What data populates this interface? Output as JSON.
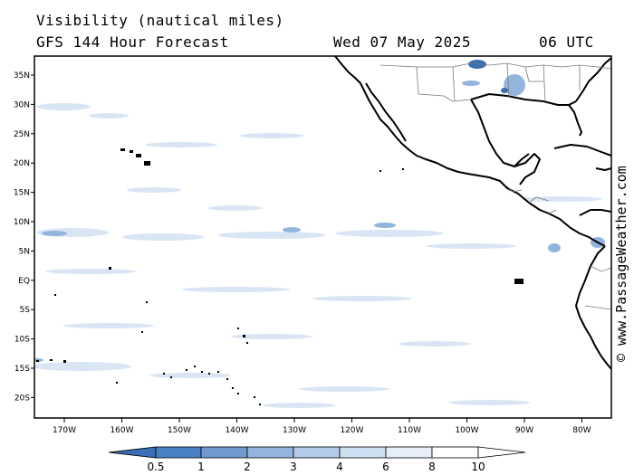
{
  "header": {
    "title": "Visibility (nautical miles)",
    "subtitle": "GFS 144 Hour Forecast",
    "date": "Wed 07 May 2025",
    "time": "06 UTC"
  },
  "credit": "© www.PassageWeather.com",
  "map": {
    "region": "Eastern Pacific",
    "lat_labels": [
      "35N",
      "30N",
      "25N",
      "20N",
      "15N",
      "10N",
      "5N",
      "EQ",
      "5S",
      "10S",
      "15S",
      "20S"
    ],
    "lon_labels": [
      "170W",
      "160W",
      "150W",
      "140W",
      "130W",
      "120W",
      "110W",
      "100W",
      "90W",
      "80W"
    ]
  },
  "colorbar": {
    "levels": [
      "0.5",
      "1",
      "2",
      "3",
      "4",
      "6",
      "8",
      "10"
    ],
    "colors": [
      "#3b6eb5",
      "#4a80c4",
      "#6e9ad0",
      "#93b4dd",
      "#b3cbe9",
      "#cfdff2",
      "#e6eff9",
      "#ffffff"
    ]
  }
}
